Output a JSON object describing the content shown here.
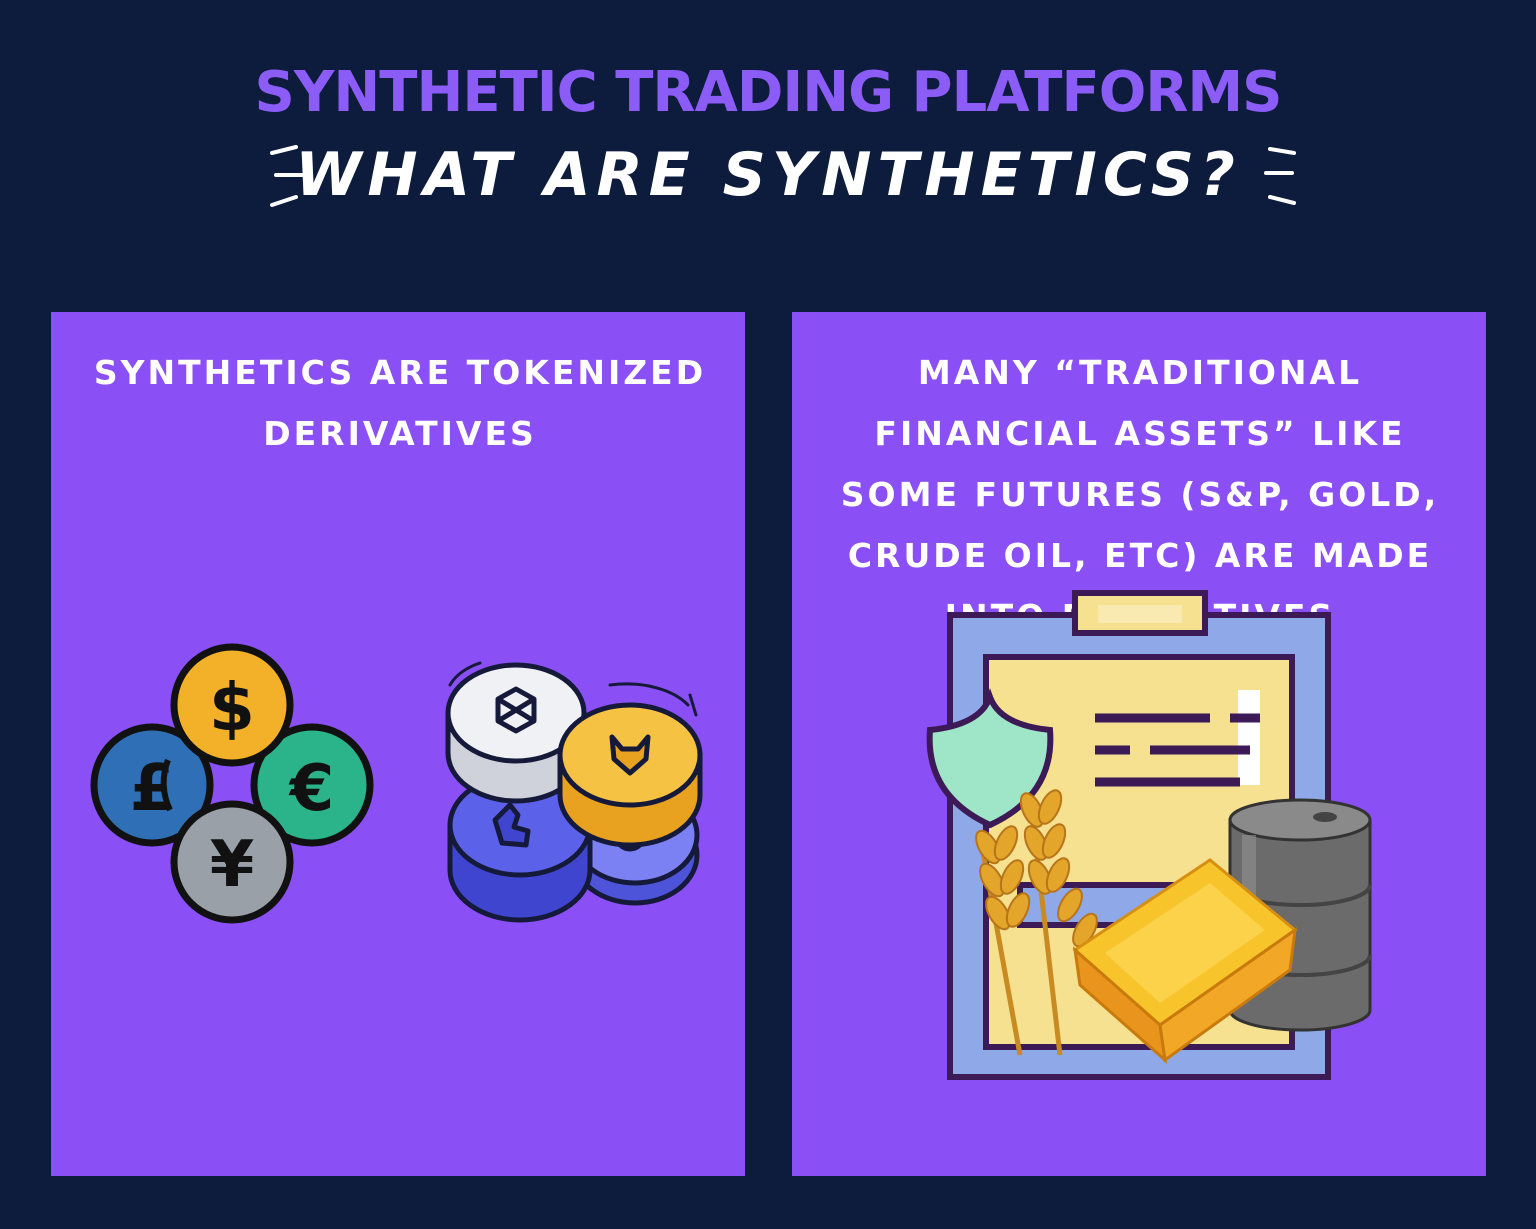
{
  "header": {
    "title": "SYNTHETIC TRADING PLATFORMS",
    "subtitle": "WHAT ARE SYNTHETICS?"
  },
  "left_panel": {
    "text": "SYNTHETICS ARE TOKENIZED DERIVATIVES",
    "currency_symbols": {
      "dollar": "$",
      "pound": "£",
      "euro": "€",
      "yen": "¥"
    },
    "illustrations": [
      "currency-coins-icon",
      "crypto-tokens-icon"
    ]
  },
  "right_panel": {
    "text": "MANY “TRADITIONAL FINANCIAL ASSETS” LIKE SOME FUTURES (S&P, GOLD, CRUDE OIL, ETC) ARE MADE INTO DERIVATIVES",
    "illustrations": [
      "clipboard-icon",
      "shield-icon",
      "wheat-icon",
      "gold-bar-icon",
      "oil-barrel-icon"
    ]
  },
  "colors": {
    "background": "#0d1b3c",
    "panel": "#8a4ff5",
    "title_accent": "#8b5cf6",
    "text": "#ffffff"
  }
}
